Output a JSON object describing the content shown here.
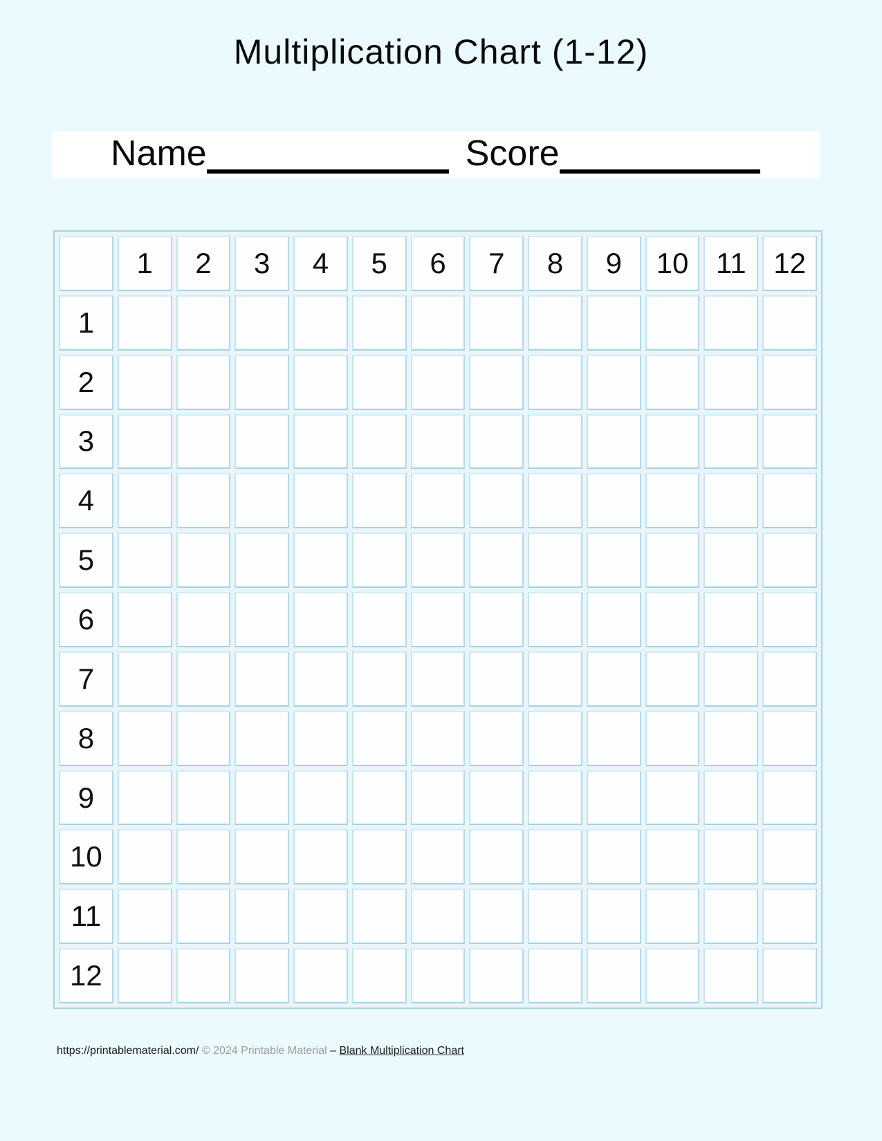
{
  "page": {
    "title": "Multiplication Chart (1-12)"
  },
  "name_score": {
    "name_label": "Name",
    "score_label": "Score"
  },
  "chart": {
    "type": "table",
    "description": "blank multiplication grid, all answer cells empty",
    "column_headers": [
      "1",
      "2",
      "3",
      "4",
      "5",
      "6",
      "7",
      "8",
      "9",
      "10",
      "11",
      "12"
    ],
    "row_headers": [
      "1",
      "2",
      "3",
      "4",
      "5",
      "6",
      "7",
      "8",
      "9",
      "10",
      "11",
      "12"
    ],
    "cell_value": ""
  },
  "footer": {
    "url": "https://printablematerial.com/",
    "copyright": "© 2024 Printable Material",
    "separator": "–",
    "link_label": "Blank Multiplication Chart"
  },
  "colors": {
    "page_bg": "#ebfaff",
    "bar_bg": "#ffffff",
    "grid_border": "#a9d4e3",
    "grid_gap_bg": "#e9f5fa",
    "cell_border": "#b9dcea",
    "cell_bg": "#fdfeff",
    "text": "#0a0a0a",
    "muted_text": "#9b9b9b",
    "line": "#000000"
  }
}
